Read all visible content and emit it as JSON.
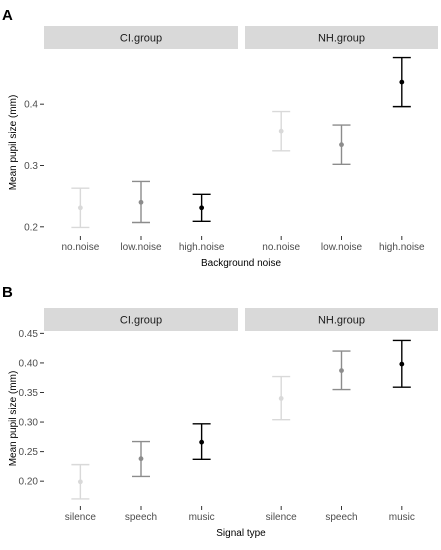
{
  "chart_data": [
    {
      "panel_label": "A",
      "type": "errorbar",
      "facets": [
        "CI.group",
        "NH.group"
      ],
      "xlabel": "Background noise",
      "ylabel": "Mean pupil size (mm)",
      "categories": [
        "no.noise",
        "low.noise",
        "high.noise"
      ],
      "yticks": [
        "0.2",
        "0.3",
        "0.4"
      ],
      "ylim": [
        0.185,
        0.49
      ],
      "colors": [
        "#d9d9d9",
        "#8c8c8c",
        "#000000"
      ],
      "panels": [
        {
          "facet": "CI.group",
          "points": [
            {
              "x": "no.noise",
              "mean": 0.231,
              "lower": 0.199,
              "upper": 0.263
            },
            {
              "x": "low.noise",
              "mean": 0.24,
              "lower": 0.207,
              "upper": 0.274
            },
            {
              "x": "high.noise",
              "mean": 0.231,
              "lower": 0.209,
              "upper": 0.253
            }
          ]
        },
        {
          "facet": "NH.group",
          "points": [
            {
              "x": "no.noise",
              "mean": 0.356,
              "lower": 0.324,
              "upper": 0.388
            },
            {
              "x": "low.noise",
              "mean": 0.334,
              "lower": 0.302,
              "upper": 0.366
            },
            {
              "x": "high.noise",
              "mean": 0.436,
              "lower": 0.396,
              "upper": 0.476
            }
          ]
        }
      ]
    },
    {
      "panel_label": "B",
      "type": "errorbar",
      "facets": [
        "CI.group",
        "NH.group"
      ],
      "xlabel": "Signal type",
      "ylabel": "Mean pupil size (mm)",
      "categories": [
        "silence",
        "speech",
        "music"
      ],
      "yticks": [
        "0.20",
        "0.25",
        "0.30",
        "0.35",
        "0.40",
        "0.45"
      ],
      "ylim": [
        0.158,
        0.454
      ],
      "colors": [
        "#d9d9d9",
        "#8c8c8c",
        "#000000"
      ],
      "panels": [
        {
          "facet": "CI.group",
          "points": [
            {
              "x": "silence",
              "mean": 0.199,
              "lower": 0.17,
              "upper": 0.228
            },
            {
              "x": "speech",
              "mean": 0.238,
              "lower": 0.208,
              "upper": 0.267
            },
            {
              "x": "music",
              "mean": 0.266,
              "lower": 0.237,
              "upper": 0.297
            }
          ]
        },
        {
          "facet": "NH.group",
          "points": [
            {
              "x": "silence",
              "mean": 0.34,
              "lower": 0.304,
              "upper": 0.377
            },
            {
              "x": "speech",
              "mean": 0.387,
              "lower": 0.355,
              "upper": 0.42
            },
            {
              "x": "music",
              "mean": 0.398,
              "lower": 0.359,
              "upper": 0.438
            }
          ]
        }
      ]
    }
  ]
}
